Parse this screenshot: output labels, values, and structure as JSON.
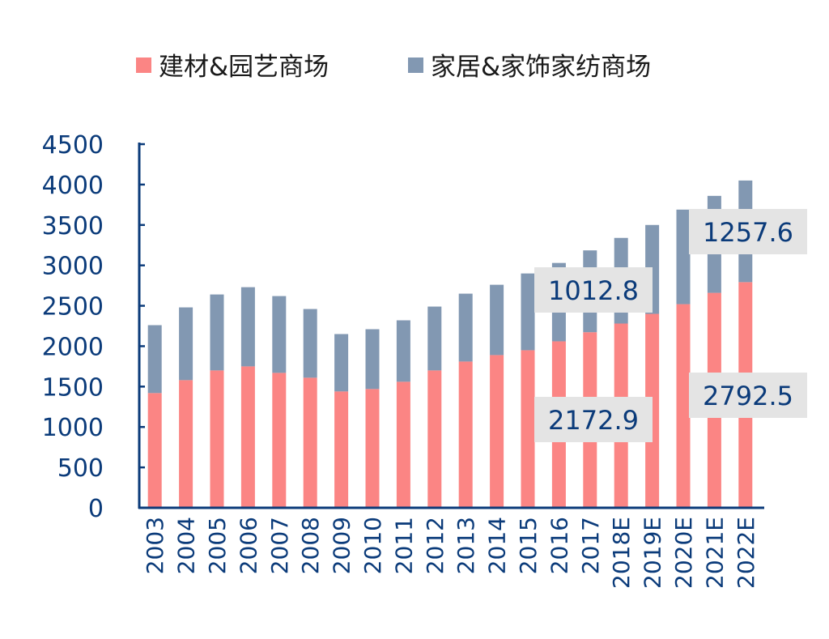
{
  "chart_data": {
    "type": "bar",
    "stacked": true,
    "categories": [
      "2003",
      "2004",
      "2005",
      "2006",
      "2007",
      "2008",
      "2009",
      "2010",
      "2011",
      "2012",
      "2013",
      "2014",
      "2015",
      "2016",
      "2017",
      "2018E",
      "2019E",
      "2020E",
      "2021E",
      "2022E"
    ],
    "series": [
      {
        "name": "建材&园艺商场",
        "color": "#fb8584",
        "values": [
          1420,
          1580,
          1700,
          1750,
          1670,
          1610,
          1440,
          1470,
          1560,
          1700,
          1810,
          1890,
          1950,
          2060,
          2172.9,
          2280,
          2400,
          2520,
          2660,
          2792.5
        ]
      },
      {
        "name": "家居&家饰家纺商场",
        "color": "#8298b2",
        "values": [
          840,
          900,
          940,
          980,
          950,
          850,
          710,
          740,
          760,
          790,
          840,
          870,
          950,
          970,
          1012.8,
          1060,
          1100,
          1170,
          1200,
          1257.6
        ]
      }
    ],
    "yticks": [
      "0",
      "500",
      "1000",
      "1500",
      "2000",
      "2500",
      "3000",
      "3500",
      "4000",
      "4500"
    ],
    "ylim": [
      0,
      4500
    ],
    "grid": false,
    "legend_position": "top",
    "annotations": [
      {
        "text": "1012.8",
        "category": "2017",
        "series": "家居&家饰家纺商场"
      },
      {
        "text": "2172.9",
        "category": "2017",
        "series": "建材&园艺商场"
      },
      {
        "text": "1257.6",
        "category": "2022E",
        "series": "家居&家饰家纺商场"
      },
      {
        "text": "2792.5",
        "category": "2022E",
        "series": "建材&园艺商场"
      }
    ],
    "axis_color": "#0b3b7a",
    "callout_bg": "#e4e4e4"
  }
}
